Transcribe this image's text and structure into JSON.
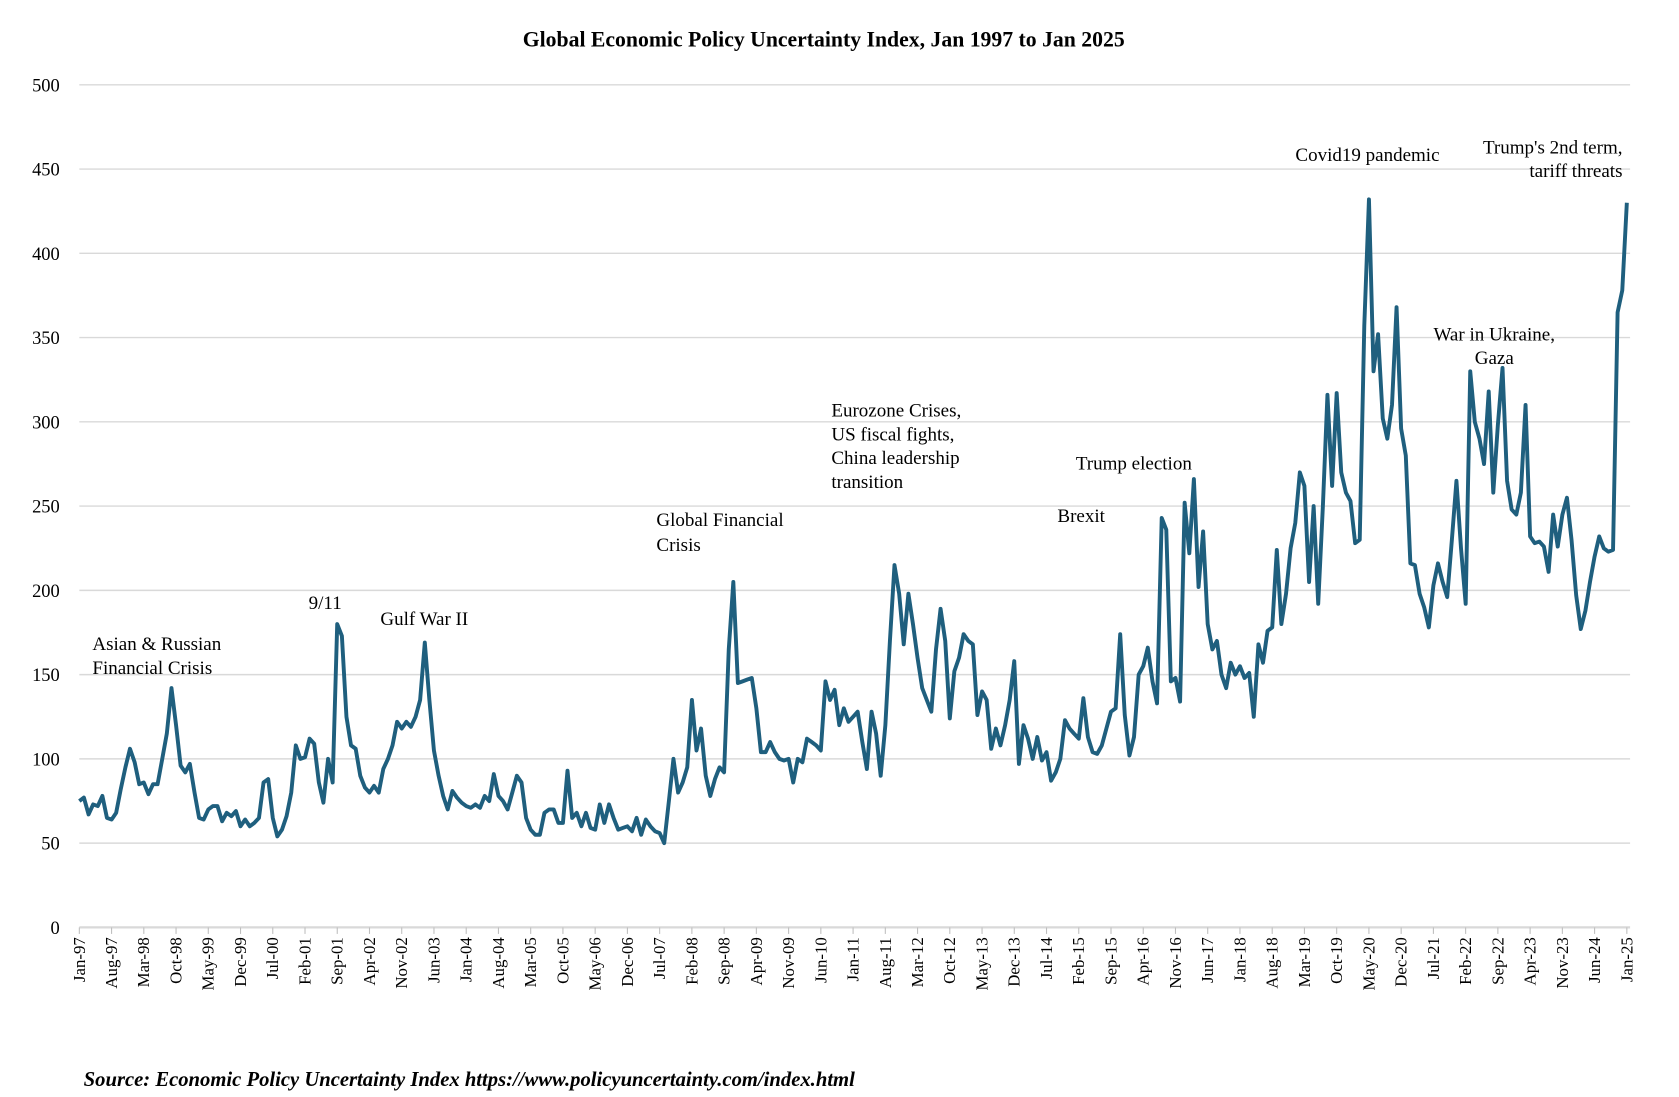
{
  "chart_data": {
    "type": "line",
    "title": "Global Economic Policy Uncertainty Index, Jan 1997 to Jan 2025",
    "xlabel": "",
    "ylabel": "",
    "ylim": [
      0,
      500
    ],
    "yticks": [
      0,
      50,
      100,
      150,
      200,
      250,
      300,
      350,
      400,
      450,
      500
    ],
    "grid": true,
    "legend": "none",
    "x_start": "Jan-97",
    "x_frequency": "monthly",
    "xtick_labels": [
      "Jan-97",
      "Aug-97",
      "Mar-98",
      "Oct-98",
      "May-99",
      "Dec-99",
      "Jul-00",
      "Feb-01",
      "Sep-01",
      "Apr-02",
      "Nov-02",
      "Jun-03",
      "Jan-04",
      "Aug-04",
      "Mar-05",
      "Oct-05",
      "May-06",
      "Dec-06",
      "Jul-07",
      "Feb-08",
      "Sep-08",
      "Apr-09",
      "Nov-09",
      "Jun-10",
      "Jan-11",
      "Aug-11",
      "Mar-12",
      "Oct-12",
      "May-13",
      "Dec-13",
      "Jul-14",
      "Feb-15",
      "Sep-15",
      "Apr-16",
      "Nov-16",
      "Jun-17",
      "Jan-18",
      "Aug-18",
      "Mar-19",
      "Oct-19",
      "May-20",
      "Dec-20",
      "Jul-21",
      "Feb-22",
      "Sep-22",
      "Apr-23",
      "Nov-23",
      "Jun-24",
      "Jan-25"
    ],
    "xtick_step_months": 7,
    "series": [
      {
        "name": "Global Economic Policy Uncertainty Index",
        "color": "#1f5f7e",
        "values": [
          75,
          77,
          67,
          73,
          72,
          78,
          65,
          64,
          68,
          82,
          95,
          106,
          98,
          85,
          86,
          79,
          85,
          85,
          100,
          115,
          142,
          120,
          96,
          92,
          97,
          80,
          65,
          64,
          70,
          72,
          72,
          63,
          68,
          66,
          69,
          60,
          64,
          60,
          62,
          65,
          86,
          88,
          65,
          54,
          58,
          66,
          80,
          108,
          100,
          101,
          112,
          109,
          86,
          74,
          100,
          86,
          180,
          173,
          125,
          108,
          106,
          90,
          83,
          80,
          84,
          80,
          94,
          100,
          108,
          122,
          118,
          122,
          119,
          125,
          135,
          169,
          135,
          105,
          90,
          78,
          70,
          81,
          77,
          74,
          72,
          71,
          73,
          71,
          78,
          75,
          91,
          78,
          75,
          70,
          80,
          90,
          86,
          65,
          58,
          55,
          55,
          68,
          70,
          70,
          62,
          62,
          93,
          65,
          68,
          60,
          68,
          59,
          58,
          73,
          62,
          73,
          65,
          58,
          59,
          60,
          57,
          65,
          55,
          64,
          60,
          57,
          56,
          50,
          75,
          100,
          80,
          86,
          95,
          135,
          105,
          118,
          90,
          78,
          88,
          95,
          92,
          165,
          205,
          145,
          146,
          147,
          148,
          130,
          104,
          104,
          110,
          104,
          100,
          99,
          100,
          86,
          100,
          98,
          112,
          110,
          108,
          105,
          146,
          135,
          141,
          120,
          130,
          122,
          125,
          128,
          110,
          94,
          128,
          115,
          90,
          120,
          170,
          215,
          198,
          168,
          198,
          180,
          160,
          142,
          135,
          128,
          165,
          189,
          170,
          124,
          152,
          160,
          174,
          170,
          168,
          126,
          140,
          135,
          106,
          118,
          108,
          120,
          135,
          158,
          97,
          120,
          112,
          100,
          113,
          99,
          104,
          87,
          92,
          100,
          123,
          118,
          115,
          112,
          136,
          113,
          104,
          103,
          108,
          118,
          128,
          130,
          174,
          126,
          102,
          113,
          150,
          155,
          166,
          146,
          133,
          243,
          236,
          146,
          148,
          134,
          252,
          222,
          266,
          202,
          235,
          180,
          165,
          170,
          150,
          142,
          157,
          150,
          155,
          148,
          151,
          125,
          168,
          157,
          176,
          178,
          224,
          180,
          198,
          225,
          240,
          270,
          262,
          205,
          250,
          192,
          250,
          316,
          262,
          317,
          270,
          258,
          253,
          228,
          230,
          357,
          432,
          330,
          352,
          302,
          290,
          310,
          368,
          296,
          280,
          216,
          215,
          198,
          190,
          178,
          203,
          216,
          205,
          196,
          230,
          265,
          225,
          192,
          330,
          300,
          290,
          275,
          318,
          258,
          298,
          332,
          265,
          248,
          245,
          258,
          310,
          232,
          228,
          229,
          226,
          211,
          245,
          226,
          245,
          255,
          230,
          197,
          177,
          188,
          205,
          220,
          232,
          225,
          223,
          224,
          365,
          378,
          430
        ]
      }
    ],
    "annotations": [
      {
        "id": "asian",
        "lines": [
          "Asian & Russian",
          "Financial Crisis"
        ]
      },
      {
        "id": "911",
        "lines": [
          "9/11"
        ]
      },
      {
        "id": "gulf",
        "lines": [
          "Gulf War II"
        ]
      },
      {
        "id": "gfc",
        "lines": [
          "Global Financial",
          "Crisis"
        ]
      },
      {
        "id": "euro",
        "lines": [
          "Eurozone Crises,",
          "US fiscal fights,",
          "China leadership",
          "transition"
        ]
      },
      {
        "id": "trump",
        "lines": [
          "Trump election"
        ]
      },
      {
        "id": "brexit",
        "lines": [
          "Brexit"
        ]
      },
      {
        "id": "covid",
        "lines": [
          "Covid19 pandemic"
        ]
      },
      {
        "id": "trump2",
        "lines": [
          "Trump's 2nd term,",
          "tariff threats"
        ]
      },
      {
        "id": "ukraine",
        "lines": [
          "War in Ukraine,",
          "Gaza"
        ]
      }
    ],
    "source": "Source: Economic Policy Uncertainty Index https://www.policyuncertainty.com/index.html"
  }
}
